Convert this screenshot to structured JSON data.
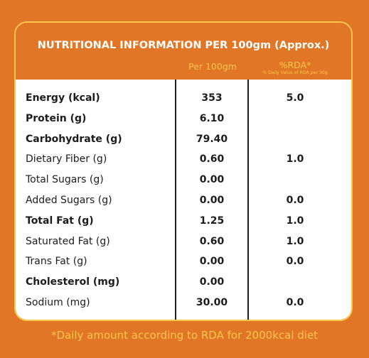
{
  "header": {
    "title": "NUTRITIONAL INFORMATION PER 100gm (Approx.)",
    "col_per100": "Per 100gm",
    "col_rda": "%RDA*",
    "col_rda_note": "% Daily Value of RDA per 30g"
  },
  "rows": [
    {
      "name": "Energy (kcal)",
      "per100": "353",
      "rda": "5.0",
      "bold": true
    },
    {
      "name": "Protein (g)",
      "per100": "6.10",
      "rda": "",
      "bold": true
    },
    {
      "name": "Carbohydrate (g)",
      "per100": "79.40",
      "rda": "",
      "bold": true
    },
    {
      "name": "Dietary Fiber (g)",
      "per100": "0.60",
      "rda": "1.0",
      "bold": false
    },
    {
      "name": "Total Sugars (g)",
      "per100": "0.00",
      "rda": "",
      "bold": false
    },
    {
      "name": "Added Sugars (g)",
      "per100": "0.00",
      "rda": "0.0",
      "bold": false
    },
    {
      "name": "Total Fat (g)",
      "per100": "1.25",
      "rda": "1.0",
      "bold": true
    },
    {
      "name": "Saturated Fat (g)",
      "per100": "0.60",
      "rda": "1.0",
      "bold": false
    },
    {
      "name": "Trans Fat (g)",
      "per100": "0.00",
      "rda": "0.0",
      "bold": false
    },
    {
      "name": "Cholesterol (mg)",
      "per100": "0.00",
      "rda": "",
      "bold": true
    },
    {
      "name": "Sodium (mg)",
      "per100": "30.00",
      "rda": "0.0",
      "bold": false
    }
  ],
  "footer": {
    "text": "*Daily amount according to RDA for 2000kcal diet"
  },
  "colors": {
    "background": "#e27627",
    "accent": "#f7c64a",
    "table_bg": "#ffffff",
    "text": "#1c1c1c"
  }
}
